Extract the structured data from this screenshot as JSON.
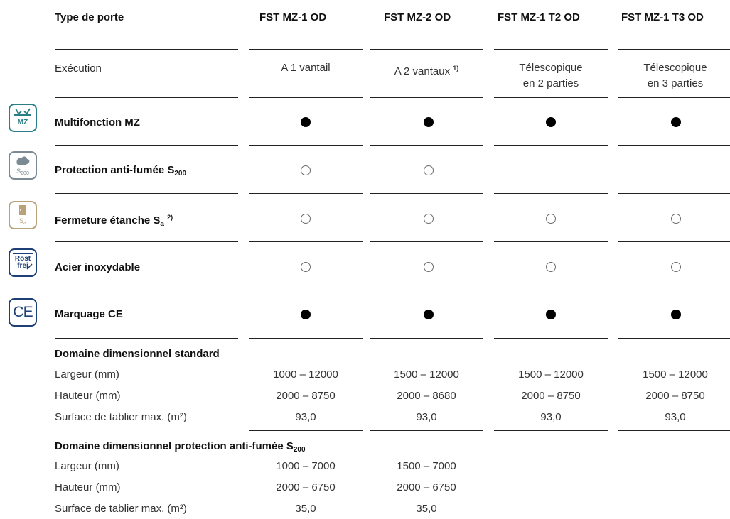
{
  "header": {
    "type_label": "Type de porte",
    "columns": [
      "FST MZ-1 OD",
      "FST MZ-2 OD",
      "FST MZ-1 T2 OD",
      "FST MZ-1 T3 OD"
    ]
  },
  "execution": {
    "label": "Exécution",
    "values": [
      [
        "A 1 vantail"
      ],
      [
        "A 2 vantaux",
        "1)"
      ],
      [
        "Télescopique",
        "en 2 parties"
      ],
      [
        "Télescopique",
        "en 3 parties"
      ]
    ]
  },
  "features": [
    {
      "icon": "multifunction-mz-icon",
      "icon_text": "MZ",
      "label": "Multifonction MZ",
      "label_sub": "",
      "label_sup": "",
      "marks": [
        "filled",
        "filled",
        "filled",
        "filled"
      ]
    },
    {
      "icon": "smoke-protection-icon",
      "icon_text": "S200",
      "label": "Protection anti-fumée S",
      "label_sub": "200",
      "label_sup": "",
      "marks": [
        "empty",
        "empty",
        "none",
        "none"
      ]
    },
    {
      "icon": "tight-seal-icon",
      "icon_text": "Sa",
      "label": "Fermeture étanche S",
      "label_sub": "a",
      "label_sup": "2)",
      "marks": [
        "empty",
        "empty",
        "empty",
        "empty"
      ]
    },
    {
      "icon": "stainless-steel-icon",
      "icon_text": "Rost frei",
      "label": "Acier inoxydable",
      "label_sub": "",
      "label_sup": "",
      "marks": [
        "empty",
        "empty",
        "empty",
        "empty"
      ]
    },
    {
      "icon": "ce-mark-icon",
      "icon_text": "CE",
      "label": "Marquage CE",
      "label_sub": "",
      "label_sup": "",
      "marks": [
        "filled",
        "filled",
        "filled",
        "filled"
      ]
    }
  ],
  "standard_dimensions": {
    "title": "Domaine dimensionnel standard",
    "rows": [
      {
        "label": "Largeur (mm)",
        "values": [
          "1000 – 12000",
          "1500 – 12000",
          "1500 – 12000",
          "1500 – 12000"
        ]
      },
      {
        "label": "Hauteur (mm)",
        "values": [
          "2000 – 8750",
          "2000 – 8680",
          "2000 – 8750",
          "2000 – 8750"
        ]
      },
      {
        "label": "Surface de tablier max. (m²)",
        "values": [
          "93,0",
          "93,0",
          "93,0",
          "93,0"
        ]
      }
    ]
  },
  "smoke_dimensions": {
    "title": "Domaine dimensionnel protection anti-fumée S",
    "title_sub": "200",
    "rows": [
      {
        "label": "Largeur (mm)",
        "values": [
          "1000 – 7000",
          "1500 – 7000"
        ]
      },
      {
        "label": "Hauteur (mm)",
        "values": [
          "2000 – 6750",
          "2000 – 6750"
        ]
      },
      {
        "label": "Surface de tablier max. (m²)",
        "values": [
          "35,0",
          "35,0"
        ]
      }
    ]
  },
  "colors": {
    "icon_teal": "#2a7f86",
    "icon_grey": "#7b8a93",
    "icon_tan": "#b7a27a",
    "icon_navy": "#1f3f77"
  }
}
